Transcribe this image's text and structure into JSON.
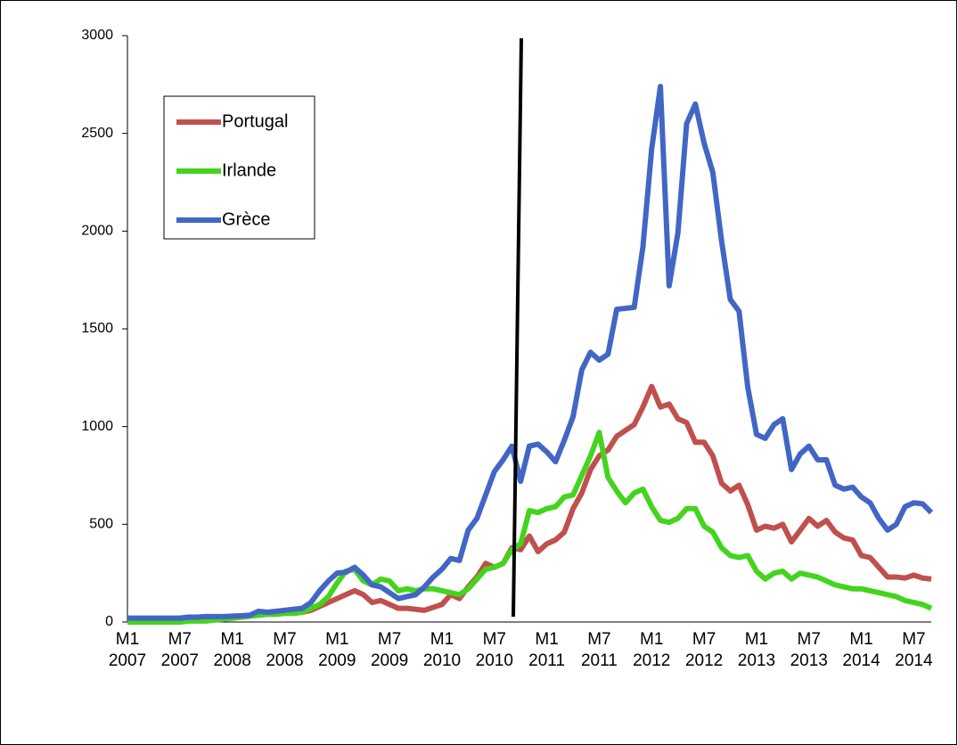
{
  "chart_data": {
    "type": "line",
    "categories": [
      "M1 2007",
      null,
      null,
      null,
      null,
      null,
      "M7 2007",
      null,
      null,
      null,
      null,
      null,
      "M1 2008",
      null,
      null,
      null,
      null,
      null,
      "M7 2008",
      null,
      null,
      null,
      null,
      null,
      "M1 2009",
      null,
      null,
      null,
      null,
      null,
      "M7 2009",
      null,
      null,
      null,
      null,
      null,
      "M1 2010",
      null,
      null,
      null,
      null,
      null,
      "M7 2010",
      null,
      null,
      null,
      null,
      null,
      "M1 2011",
      null,
      null,
      null,
      null,
      null,
      "M7 2011",
      null,
      null,
      null,
      null,
      null,
      "M1 2012",
      null,
      null,
      null,
      null,
      null,
      "M7 2012",
      null,
      null,
      null,
      null,
      null,
      "M1 2013",
      null,
      null,
      null,
      null,
      null,
      "M7 2013",
      null,
      null,
      null,
      null,
      null,
      "M1 2014",
      null,
      null,
      null,
      null,
      null,
      "M7 2014",
      null,
      null
    ],
    "series": [
      {
        "name": "Portugal",
        "color": "#c0504d",
        "values": [
          10,
          10,
          10,
          10,
          10,
          10,
          10,
          12,
          12,
          15,
          15,
          18,
          20,
          25,
          30,
          35,
          40,
          40,
          45,
          45,
          50,
          60,
          80,
          100,
          120,
          140,
          160,
          140,
          100,
          110,
          90,
          70,
          70,
          65,
          60,
          75,
          90,
          140,
          120,
          180,
          230,
          300,
          280,
          300,
          380,
          370,
          440,
          360,
          400,
          420,
          460,
          580,
          660,
          780,
          850,
          880,
          950,
          980,
          1010,
          1100,
          1205,
          1100,
          1115,
          1040,
          1020,
          920,
          920,
          850,
          710,
          670,
          700,
          600,
          470,
          490,
          480,
          500,
          410,
          470,
          530,
          490,
          520,
          460,
          430,
          420,
          340,
          330,
          280,
          230,
          230,
          225,
          240,
          225,
          220
        ]
      },
      {
        "name": "Irlande",
        "color": "#44d41e",
        "values": [
          0,
          0,
          0,
          0,
          0,
          0,
          0,
          5,
          5,
          5,
          10,
          15,
          20,
          25,
          30,
          35,
          40,
          40,
          45,
          45,
          50,
          70,
          90,
          130,
          200,
          260,
          270,
          210,
          190,
          220,
          210,
          160,
          170,
          160,
          170,
          170,
          160,
          150,
          140,
          170,
          220,
          270,
          280,
          300,
          370,
          400,
          570,
          560,
          580,
          590,
          640,
          650,
          750,
          850,
          970,
          740,
          670,
          610,
          660,
          680,
          590,
          520,
          510,
          530,
          580,
          580,
          490,
          460,
          380,
          340,
          330,
          340,
          260,
          220,
          250,
          260,
          220,
          250,
          240,
          230,
          210,
          190,
          180,
          170,
          170,
          160,
          150,
          140,
          130,
          110,
          100,
          90,
          70
        ]
      },
      {
        "name": "Grèce",
        "color": "#4266c4",
        "values": [
          20,
          20,
          20,
          20,
          20,
          20,
          20,
          25,
          25,
          28,
          28,
          28,
          30,
          32,
          35,
          55,
          50,
          55,
          60,
          65,
          70,
          100,
          160,
          210,
          250,
          255,
          280,
          240,
          190,
          180,
          150,
          120,
          130,
          140,
          180,
          230,
          270,
          325,
          315,
          470,
          530,
          650,
          770,
          830,
          900,
          720,
          900,
          910,
          870,
          820,
          930,
          1050,
          1290,
          1380,
          1340,
          1370,
          1600,
          1605,
          1610,
          1920,
          2420,
          2740,
          1720,
          1990,
          2550,
          2650,
          2450,
          2300,
          1950,
          1650,
          1590,
          1200,
          960,
          940,
          1010,
          1040,
          780,
          860,
          900,
          830,
          830,
          700,
          680,
          690,
          640,
          610,
          530,
          470,
          500,
          590,
          610,
          605,
          560
        ]
      }
    ],
    "ylim": [
      0,
      3000
    ],
    "yticks": [
      0,
      500,
      1000,
      1500,
      2000,
      2500,
      3000
    ],
    "legend": "upper left"
  }
}
